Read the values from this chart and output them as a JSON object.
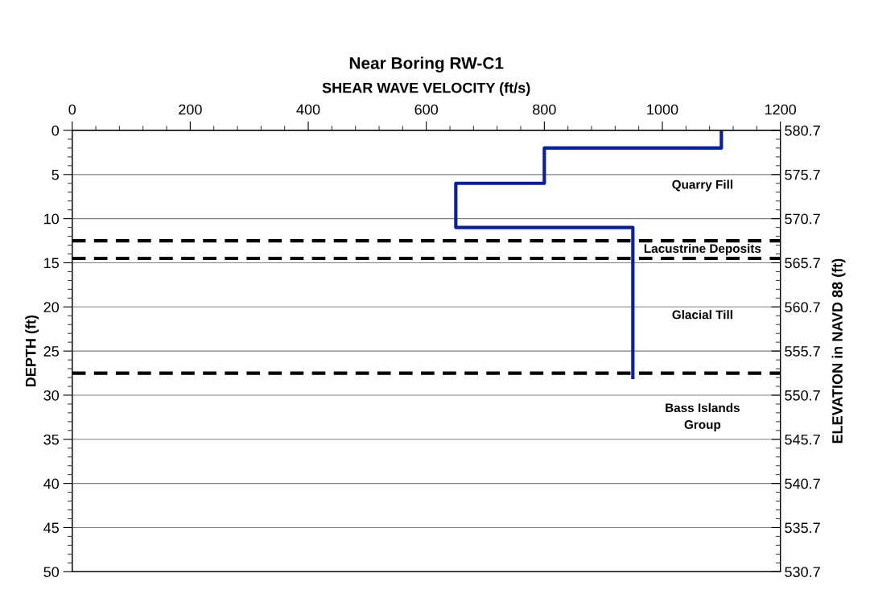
{
  "chart_data": {
    "type": "line",
    "title": "Near Boring RW-C1",
    "xlabel": "SHEAR WAVE VELOCITY (ft/s)",
    "ylabel": "DEPTH (ft)",
    "y2label": "ELEVATION in NAVD 88 (ft)",
    "series": [
      {
        "color": "#0a1fa0",
        "x": [
          1100,
          1100,
          800,
          800,
          650,
          650,
          950,
          950
        ],
        "values": [
          0,
          2,
          2,
          6,
          6,
          11,
          11,
          28
        ]
      }
    ],
    "xlim": [
      0,
      1200
    ],
    "xticks": [
      0,
      200,
      400,
      600,
      800,
      1000,
      1200
    ],
    "ylim": [
      50,
      0
    ],
    "yticks": [
      0,
      5,
      10,
      15,
      20,
      25,
      30,
      35,
      40,
      45,
      50
    ],
    "y2lim": [
      530.7,
      580.7
    ],
    "y2ticks": [
      580.7,
      575.7,
      570.7,
      565.7,
      560.7,
      555.7,
      550.7,
      545.7,
      540.7,
      535.7,
      530.7
    ],
    "ref_lines": [
      {
        "axis": "y",
        "value": 12.5,
        "color": "#000000",
        "line_style": "dashed"
      },
      {
        "axis": "y",
        "value": 14.5,
        "color": "#000000",
        "line_style": "dashed"
      },
      {
        "axis": "y",
        "value": 27.5,
        "color": "#000000",
        "line_style": "dashed"
      }
    ],
    "annotations": [
      "Quarry Fill",
      "Lacustrine Deposits",
      "Glacial Till",
      "Bass Islands\nGroup"
    ],
    "grid": "y",
    "line_style": "solid",
    "marker": "none",
    "legend": false
  }
}
